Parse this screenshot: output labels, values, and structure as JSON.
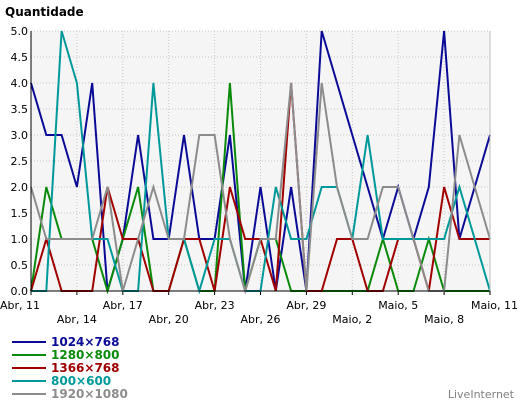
{
  "chart_data": {
    "type": "line",
    "title": "Quantidade",
    "credit": "LiveInternet",
    "grid": true,
    "legend_placement": "bottom-left",
    "ylim": [
      0,
      5
    ],
    "y_ticks": [
      "0.0",
      "0.5",
      "1.0",
      "1.5",
      "2.0",
      "2.5",
      "3.0",
      "3.5",
      "4.0",
      "4.5",
      "5.0"
    ],
    "x_tick_labels": [
      {
        "index": 0,
        "label": "Abr, 11"
      },
      {
        "index": 3,
        "label": "Abr, 14"
      },
      {
        "index": 6,
        "label": "Abr, 17"
      },
      {
        "index": 9,
        "label": "Abr, 20"
      },
      {
        "index": 12,
        "label": "Abr, 23"
      },
      {
        "index": 15,
        "label": "Abr, 26"
      },
      {
        "index": 18,
        "label": "Abr, 29"
      },
      {
        "index": 21,
        "label": "Maio, 2"
      },
      {
        "index": 24,
        "label": "Maio, 5"
      },
      {
        "index": 27,
        "label": "Maio, 8"
      },
      {
        "index": 30,
        "label": "Maio, 11"
      }
    ],
    "x": [
      "Abr, 11",
      "Abr, 12",
      "Abr, 13",
      "Abr, 14",
      "Abr, 15",
      "Abr, 16",
      "Abr, 17",
      "Abr, 18",
      "Abr, 19",
      "Abr, 20",
      "Abr, 21",
      "Abr, 22",
      "Abr, 23",
      "Abr, 24",
      "Abr, 25",
      "Abr, 26",
      "Abr, 27",
      "Abr, 28",
      "Abr, 29",
      "Abr, 30",
      "Maio, 1",
      "Maio, 2",
      "Maio, 3",
      "Maio, 4",
      "Maio, 5",
      "Maio, 6",
      "Maio, 7",
      "Maio, 8",
      "Maio, 9",
      "Maio, 10",
      "Maio, 11"
    ],
    "series": [
      {
        "name": "1024×768",
        "color": "#0a0a96",
        "values": [
          4,
          3,
          3,
          2,
          4,
          0,
          1,
          3,
          1,
          1,
          3,
          1,
          1,
          3,
          0,
          2,
          0,
          2,
          0,
          5,
          4,
          3,
          2,
          1,
          2,
          1,
          2,
          5,
          1,
          2,
          3
        ]
      },
      {
        "name": "1280×800",
        "color": "#0a8a0a",
        "values": [
          0,
          2,
          1,
          1,
          1,
          0,
          1,
          2,
          0,
          0,
          1,
          0,
          0,
          4,
          0,
          1,
          1,
          0,
          0,
          0,
          0,
          0,
          0,
          1,
          0,
          0,
          1,
          0,
          0,
          0,
          0
        ]
      },
      {
        "name": "1366×768",
        "color": "#a00000",
        "values": [
          0,
          1,
          0,
          0,
          0,
          2,
          1,
          1,
          0,
          0,
          1,
          1,
          0,
          2,
          1,
          1,
          0,
          4,
          0,
          0,
          1,
          1,
          0,
          0,
          1,
          1,
          0,
          2,
          1,
          1,
          1
        ]
      },
      {
        "name": "800×600",
        "color": "#009999",
        "values": [
          0,
          0,
          5,
          4,
          1,
          1,
          0,
          0,
          4,
          1,
          1,
          0,
          1,
          1,
          0,
          0,
          2,
          1,
          1,
          2,
          2,
          1,
          3,
          1,
          1,
          1,
          1,
          1,
          2,
          1,
          0
        ]
      },
      {
        "name": "1920×1080",
        "color": "#8c8c8c",
        "values": [
          2,
          1,
          1,
          1,
          1,
          2,
          0,
          1,
          2,
          1,
          1,
          3,
          3,
          1,
          0,
          1,
          1,
          4,
          0,
          4,
          2,
          1,
          1,
          2,
          2,
          1,
          0,
          0,
          3,
          2,
          1
        ]
      }
    ]
  }
}
